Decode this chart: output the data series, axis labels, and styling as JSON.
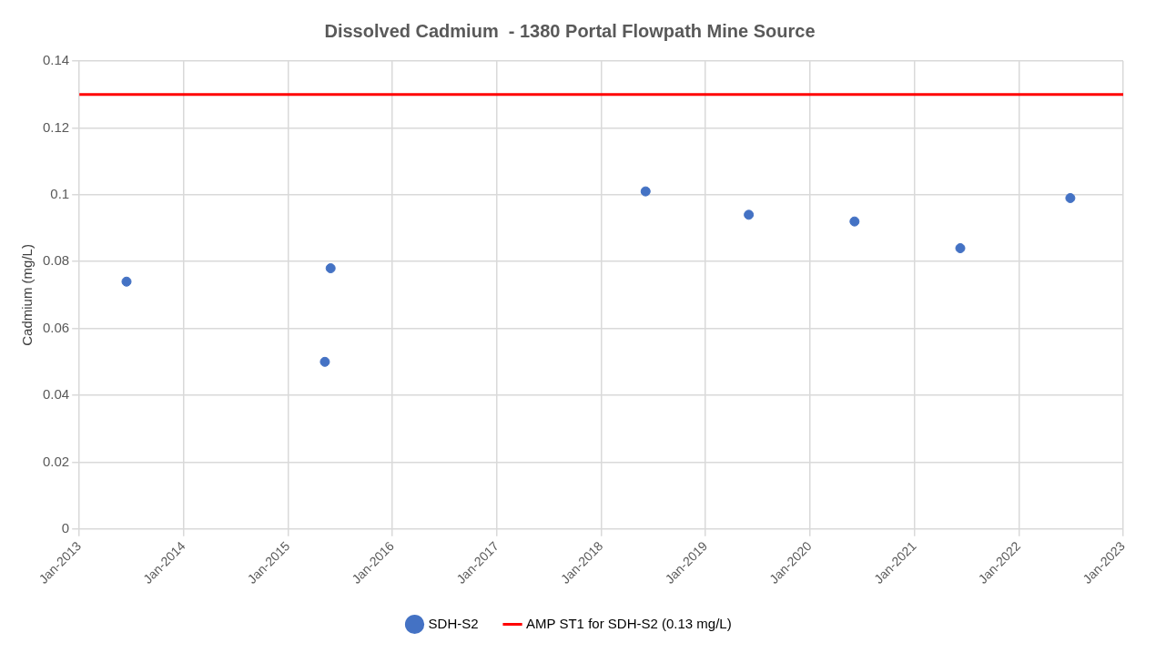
{
  "chart_data": {
    "type": "scatter",
    "title": "Dissolved Cadmium  - 1380 Portal Flowpath Mine Source",
    "ylabel": "Cadmium (mg/L)",
    "x": [
      "2013-06-15",
      "2015-05-10",
      "2015-05-30",
      "2018-06-05",
      "2019-06-01",
      "2020-06-05",
      "2021-06-10",
      "2022-06-30"
    ],
    "series": [
      {
        "name": "SDH-S2",
        "color": "#4472c4",
        "values": [
          0.074,
          0.05,
          0.078,
          0.101,
          0.094,
          0.092,
          0.084,
          0.099
        ]
      }
    ],
    "ref_lines": [
      {
        "axis": "y",
        "value": 0.13,
        "label": "AMP ST1 for SDH-S2 (0.13 mg/L)",
        "color": "#ff0000",
        "line_style": "solid"
      }
    ],
    "xlim": [
      "2013-01-01",
      "2023-01-01"
    ],
    "xticks": [
      {
        "value": "2013-01-01",
        "label": "Jan-2013"
      },
      {
        "value": "2014-01-01",
        "label": "Jan-2014"
      },
      {
        "value": "2015-01-01",
        "label": "Jan-2015"
      },
      {
        "value": "2016-01-01",
        "label": "Jan-2016"
      },
      {
        "value": "2017-01-01",
        "label": "Jan-2017"
      },
      {
        "value": "2018-01-01",
        "label": "Jan-2018"
      },
      {
        "value": "2019-01-01",
        "label": "Jan-2019"
      },
      {
        "value": "2020-01-01",
        "label": "Jan-2020"
      },
      {
        "value": "2021-01-01",
        "label": "Jan-2021"
      },
      {
        "value": "2022-01-01",
        "label": "Jan-2022"
      },
      {
        "value": "2023-01-01",
        "label": "Jan-2023"
      }
    ],
    "ylim": [
      0,
      0.14
    ],
    "yticks": [
      0,
      0.02,
      0.04,
      0.06,
      0.08,
      0.1,
      0.12,
      0.14
    ],
    "grid": true,
    "legend": "bottom",
    "marker": "circle"
  }
}
